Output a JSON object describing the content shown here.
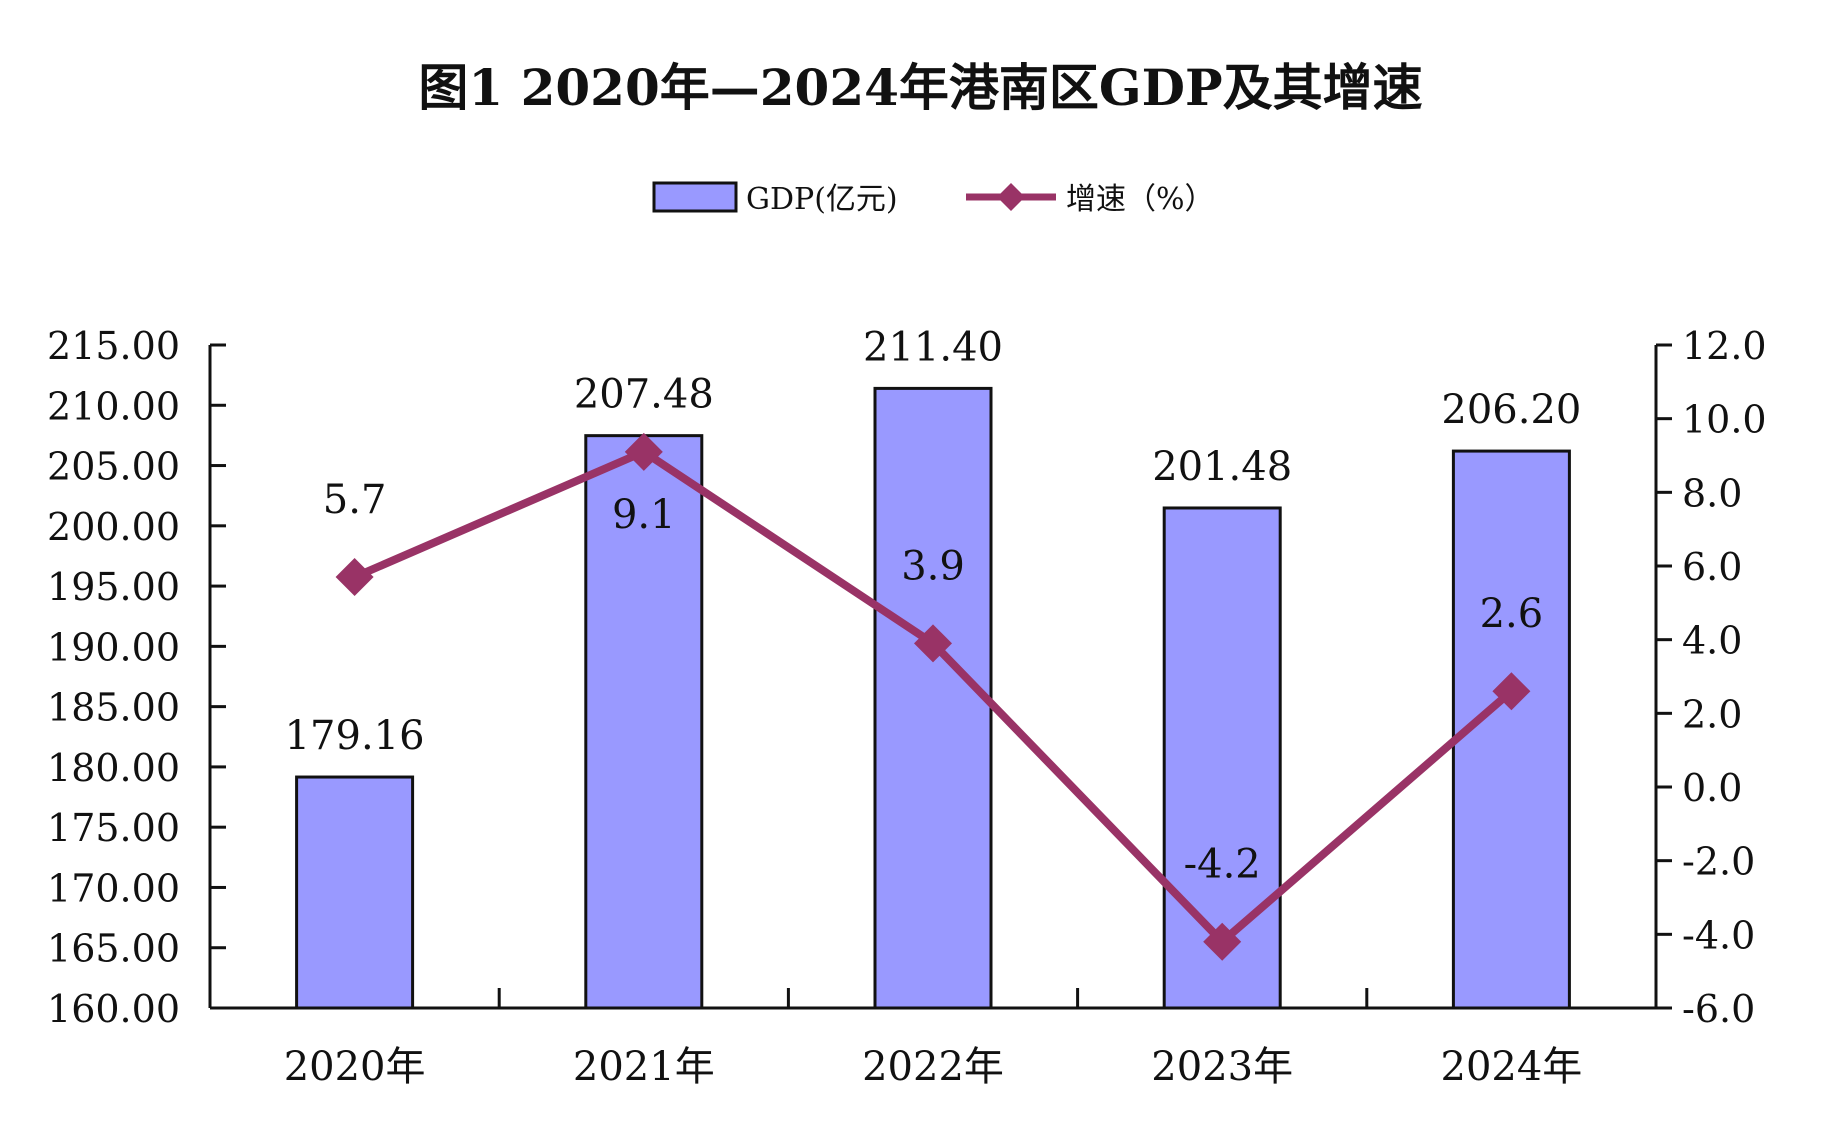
{
  "chart_data": {
    "type": "bar",
    "title": "图1 2020年—2024年港南区GDP及其增速",
    "categories": [
      "2020年",
      "2021年",
      "2022年",
      "2023年",
      "2024年"
    ],
    "series": [
      {
        "name": "GDP(亿元)",
        "type": "bar",
        "axis": "left",
        "color": "#9999FF",
        "values": [
          179.16,
          207.48,
          211.4,
          201.48,
          206.2
        ],
        "labels": [
          "179.16",
          "207.48",
          "211.40",
          "201.48",
          "206.20"
        ]
      },
      {
        "name": "增速（%）",
        "type": "line",
        "axis": "right",
        "color": "#993366",
        "values": [
          5.7,
          9.1,
          3.9,
          -4.2,
          2.6
        ],
        "labels": [
          "5.7",
          "9.1",
          "3.9",
          "-4.2",
          "2.6"
        ]
      }
    ],
    "y_left": {
      "min": 160,
      "max": 215,
      "step": 5,
      "ticks": [
        "215.00",
        "210.00",
        "205.00",
        "200.00",
        "195.00",
        "190.00",
        "185.00",
        "180.00",
        "175.00",
        "170.00",
        "165.00",
        "160.00"
      ]
    },
    "y_right": {
      "min": -6,
      "max": 12,
      "step": 2,
      "ticks": [
        "12.0",
        "10.0",
        "8.0",
        "6.0",
        "4.0",
        "2.0",
        "0.0",
        "-2.0",
        "-4.0",
        "-6.0"
      ]
    },
    "legend_position": "top",
    "grid": false
  }
}
